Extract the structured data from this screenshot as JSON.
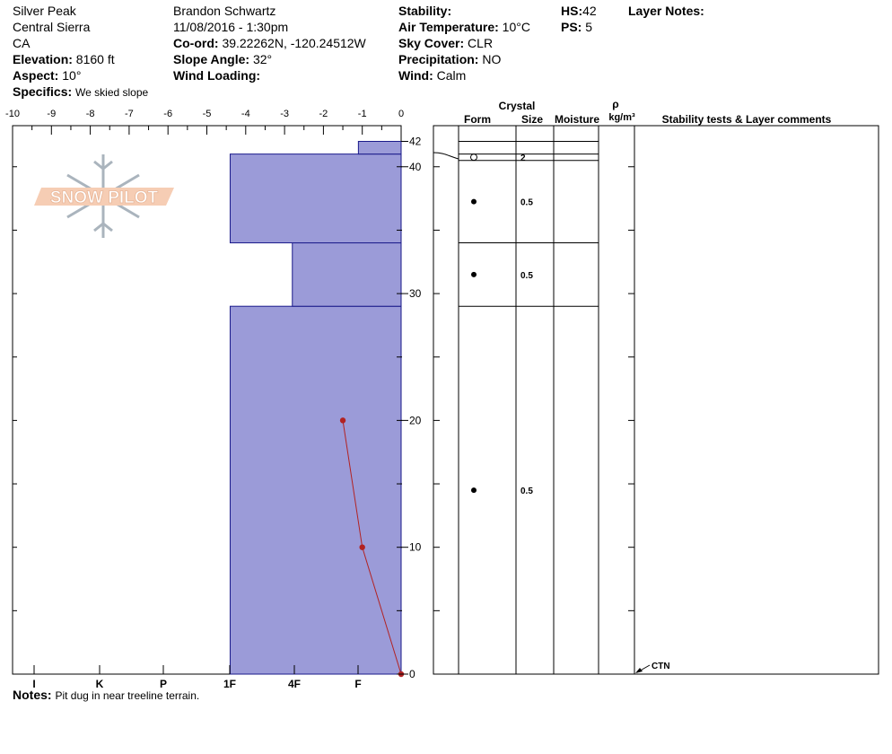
{
  "header": {
    "location": "Silver Peak",
    "range": "Central Sierra",
    "state": "CA",
    "elevation_label": "Elevation:",
    "elevation": "8160 ft",
    "aspect_label": "Aspect:",
    "aspect": "10°",
    "specifics_label": "Specifics:",
    "specifics": "We skied slope",
    "observer": "Brandon Schwartz",
    "datetime": "11/08/2016 - 1:30pm",
    "coord_label": "Co-ord:",
    "coord": "39.22262N, -120.24512W",
    "slope_label": "Slope Angle:",
    "slope": "32°",
    "wind_loading_label": "Wind Loading:",
    "wind_loading": "",
    "stability_label": "Stability:",
    "stability": "",
    "air_temp_label": "Air Temperature:",
    "air_temp": "10°C",
    "sky_label": "Sky Cover:",
    "sky": "CLR",
    "precip_label": "Precipitation:",
    "precip": "NO",
    "wind_label": "Wind:",
    "wind": "Calm",
    "hs_label": "HS:",
    "hs": "42",
    "ps_label": "PS:",
    "ps": "5",
    "layer_notes_label": "Layer Notes:"
  },
  "notes_label": "Notes:",
  "notes": "Pit dug in near treeline terrain.",
  "logo_text": "SNOW PILOT",
  "colors": {
    "hardness_fill": "#9b9bd8",
    "hardness_stroke": "#1a1a8a",
    "temp_line": "#b22222"
  },
  "chart_data": {
    "type": "area",
    "temp_axis": {
      "ticks": [
        "-10",
        "-9",
        "-8",
        "-7",
        "-6",
        "-5",
        "-4",
        "-3",
        "-2",
        "-1",
        "0"
      ],
      "range": [
        -10,
        0
      ]
    },
    "hardness_axis": {
      "ticks": [
        "I",
        "K",
        "P",
        "1F",
        "4F",
        "F"
      ]
    },
    "depth_axis": {
      "ticks": [
        "42",
        "40",
        "30",
        "20",
        "10",
        "0"
      ],
      "range": [
        0,
        42
      ]
    },
    "hardness_layers": [
      {
        "bottom": 0,
        "top": 29,
        "hardness_value": -4.4
      },
      {
        "bottom": 29,
        "top": 34,
        "hardness_value": -2.8
      },
      {
        "bottom": 34,
        "top": 41,
        "hardness_value": -4.4
      },
      {
        "bottom": 41,
        "top": 42,
        "hardness_value": -1.1
      }
    ],
    "temperature_profile": [
      {
        "depth": 0,
        "temp": 0
      },
      {
        "depth": 10,
        "temp": -1.0
      },
      {
        "depth": 20,
        "temp": -1.5
      }
    ],
    "table_headers": {
      "crystal": "Crystal",
      "form": "Form",
      "size": "Size",
      "moisture": "Moisture",
      "rho": "ρ",
      "density": "kg/m³",
      "comments": "Stability tests & Layer comments"
    },
    "table_layers": [
      {
        "bottom": 41,
        "top": 42,
        "form": "",
        "size": ""
      },
      {
        "bottom": 40.5,
        "top": 41,
        "form": "open-circle",
        "size": "2"
      },
      {
        "bottom": 34,
        "top": 40.5,
        "form": "filled-dot",
        "size": "0.5"
      },
      {
        "bottom": 29,
        "top": 34,
        "form": "filled-dot",
        "size": "0.5"
      },
      {
        "bottom": 0,
        "top": 29,
        "form": "filled-dot",
        "size": "0.5"
      }
    ],
    "test_result": {
      "depth": 0,
      "label": "CTN"
    }
  }
}
